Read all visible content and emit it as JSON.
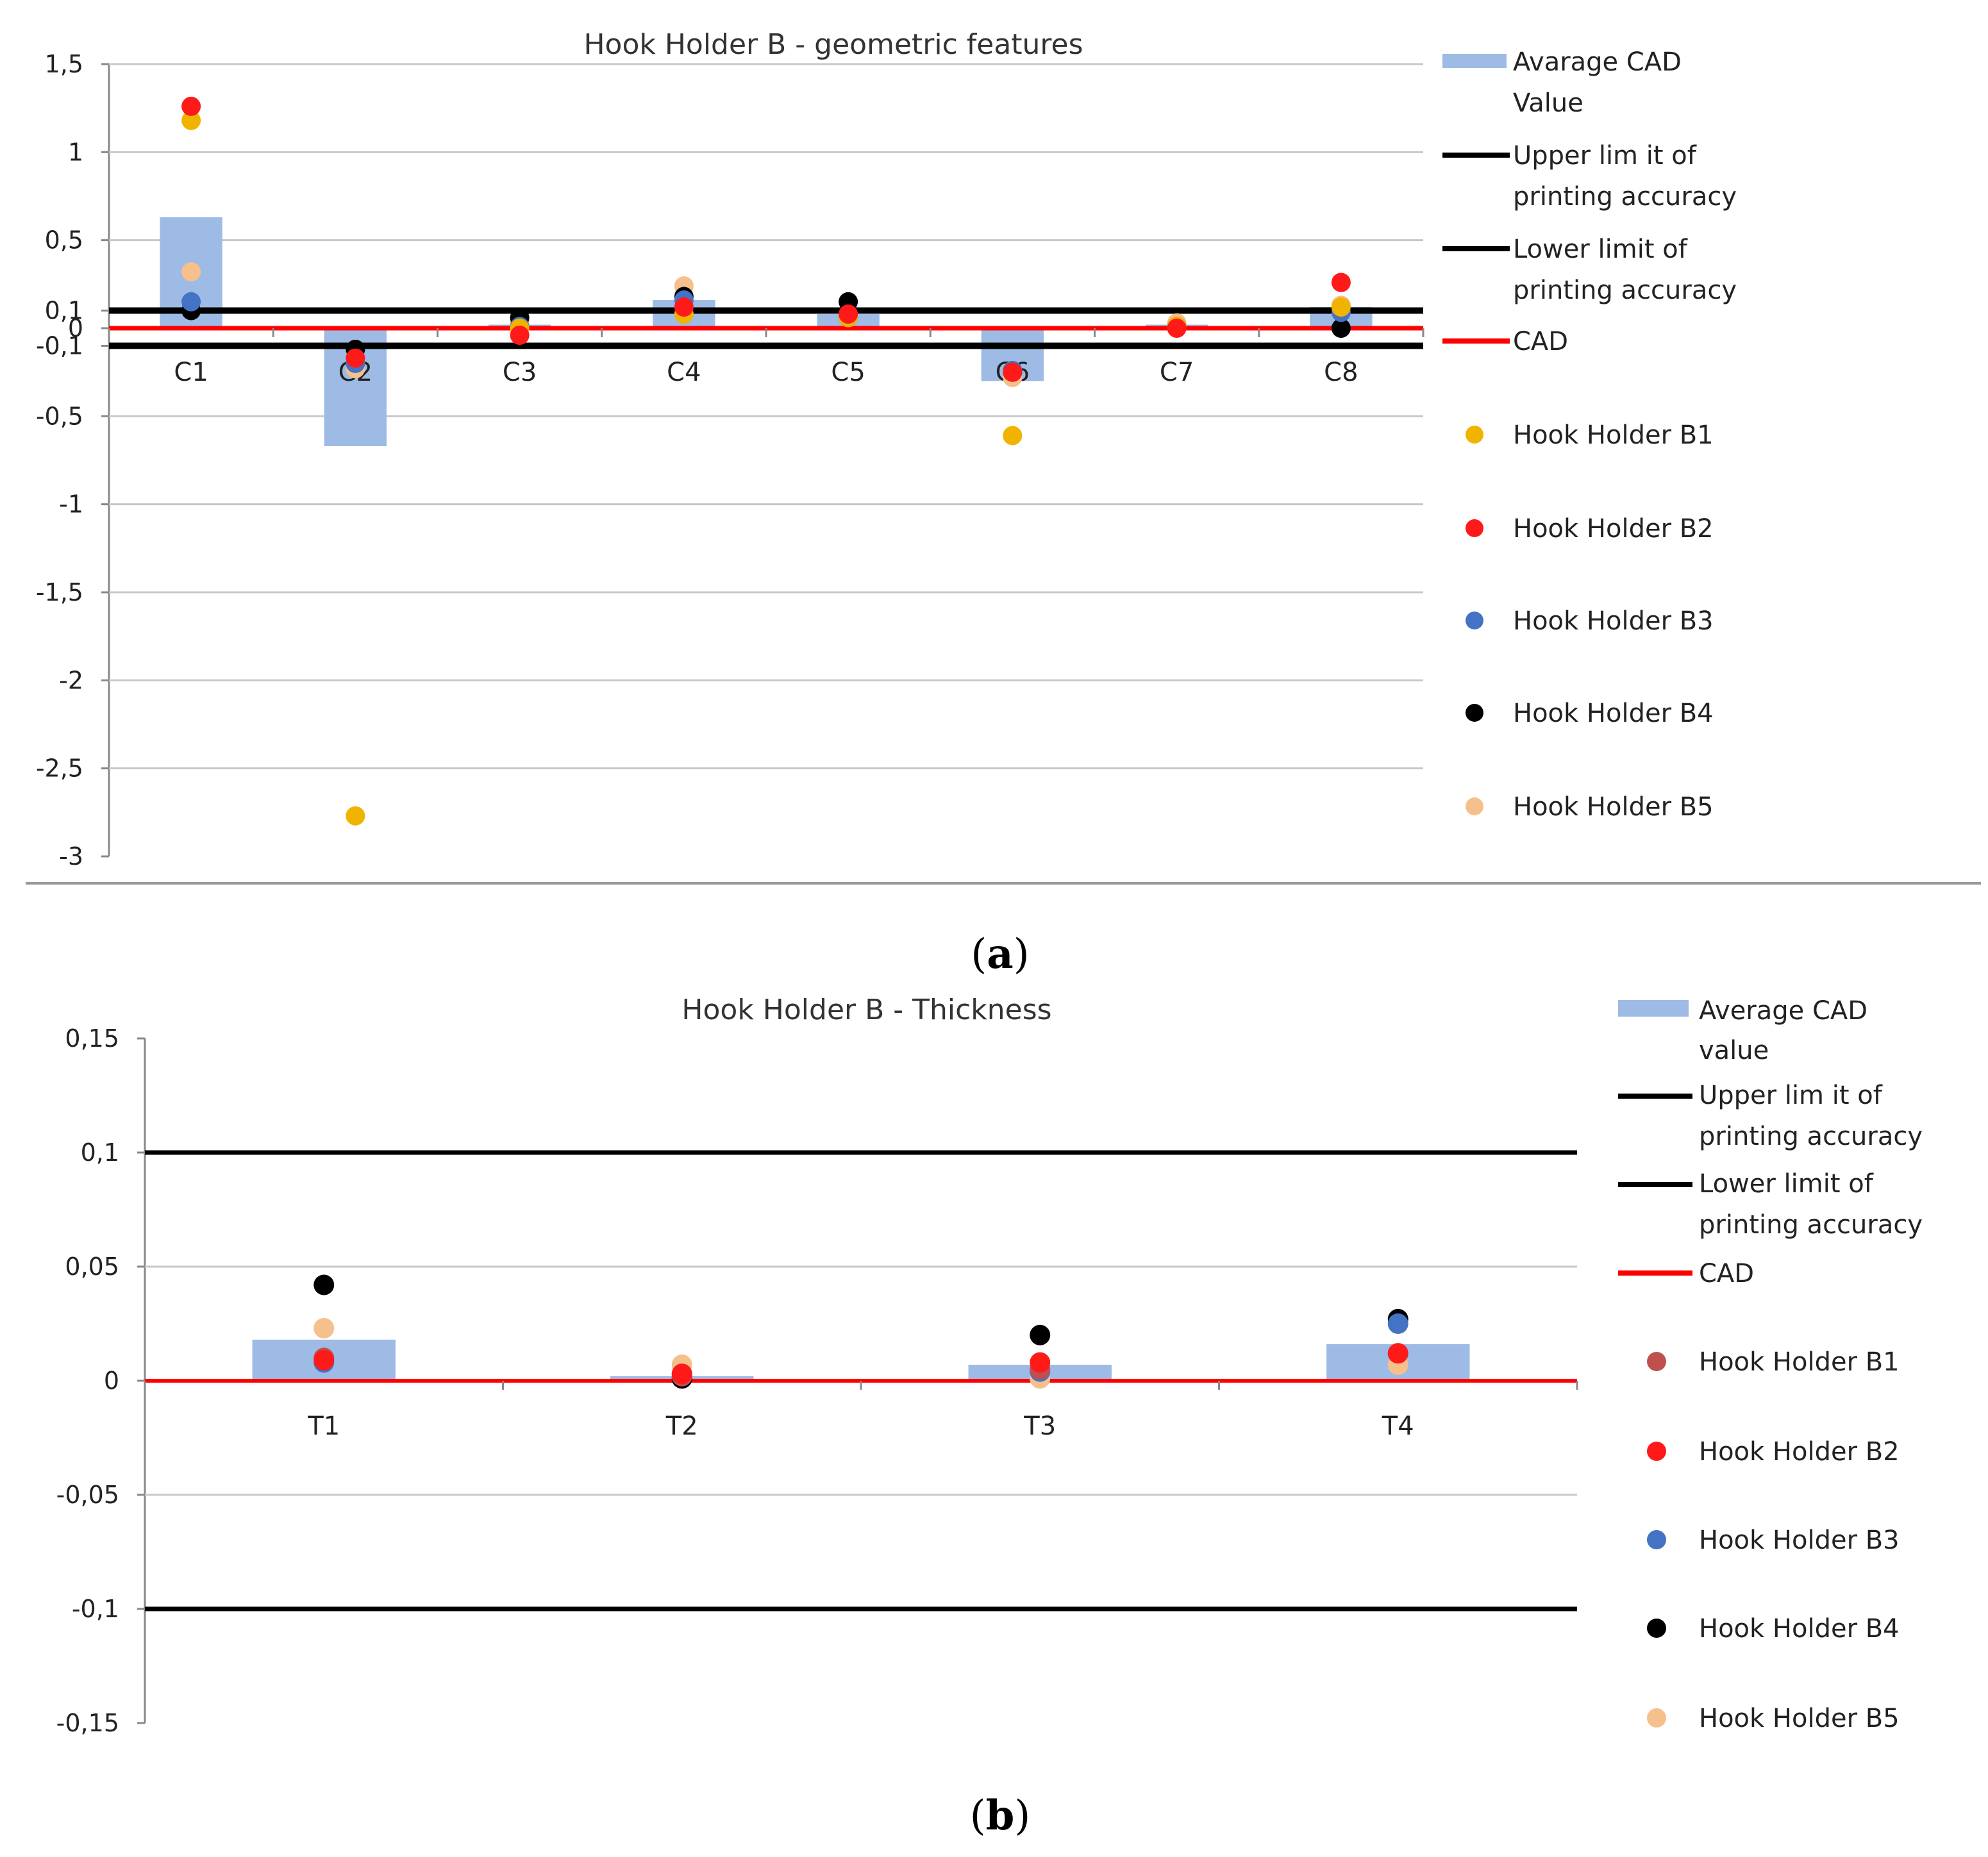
{
  "chart_data": [
    {
      "type": "bar+scatter",
      "title": "Hook Holder B - geometric features",
      "caption_letter": "a",
      "categories": [
        "C1",
        "C2",
        "C3",
        "C4",
        "C5",
        "C6",
        "C7",
        "C8"
      ],
      "y_ticks": [
        "1,5",
        "1",
        "0,5",
        "0,1",
        "0",
        "-0,1",
        "-0,5",
        "-1",
        "-1,5",
        "-2",
        "-2,5",
        "-3"
      ],
      "y_tick_values": [
        1.5,
        1,
        0.5,
        0.1,
        0,
        -0.1,
        -0.5,
        -1,
        -1.5,
        -2,
        -2.5,
        -3
      ],
      "ylim": [
        -3,
        1.5
      ],
      "average_bar": {
        "name": "Avarage CAD Value",
        "values": [
          0.63,
          -0.67,
          0.02,
          0.16,
          0.08,
          -0.3,
          0.02,
          0.12
        ]
      },
      "upper_limit": {
        "name": "Upper limit of printing accuracy",
        "value": 0.1
      },
      "lower_limit": {
        "name": "Lower limit of printing accuracy",
        "value": -0.1
      },
      "cad_line": {
        "name": "CAD",
        "value": 0
      },
      "series": [
        {
          "name": "Hook Holder B1",
          "color": "#f0b400",
          "values": [
            1.18,
            -2.77,
            0.0,
            0.08,
            0.06,
            -0.61,
            0.01,
            0.12
          ]
        },
        {
          "name": "Hook Holder B2",
          "color": "#ff1a1a",
          "values": [
            1.26,
            -0.17,
            -0.04,
            0.12,
            0.08,
            -0.25,
            0.0,
            0.26
          ]
        },
        {
          "name": "Hook Holder B3",
          "color": "#4472c4",
          "values": [
            0.15,
            -0.2,
            0.01,
            0.16,
            0.06,
            -0.24,
            0.01,
            0.09
          ]
        },
        {
          "name": "Hook Holder B4",
          "color": "#000000",
          "values": [
            0.1,
            -0.12,
            0.06,
            0.18,
            0.15,
            -0.25,
            0.01,
            0.0
          ]
        },
        {
          "name": "Hook Holder B5",
          "color": "#f5c08c",
          "values": [
            0.32,
            -0.23,
            0.04,
            0.24,
            0.07,
            -0.28,
            0.03,
            0.13
          ]
        }
      ]
    },
    {
      "type": "bar+scatter",
      "title": "Hook Holder B - Thickness",
      "caption_letter": "b",
      "categories": [
        "T1",
        "T2",
        "T3",
        "T4"
      ],
      "y_ticks": [
        "0,15",
        "0,1",
        "0,05",
        "0",
        "-0,05",
        "-0,1",
        "-0,15"
      ],
      "y_tick_values": [
        0.15,
        0.1,
        0.05,
        0,
        -0.05,
        -0.1,
        -0.15
      ],
      "ylim": [
        -0.15,
        0.15
      ],
      "average_bar": {
        "name": "Average CAD value",
        "values": [
          0.018,
          0.002,
          0.007,
          0.016
        ]
      },
      "upper_limit": {
        "name": "Upper limit of printing accuracy",
        "value": 0.1
      },
      "lower_limit": {
        "name": "Lower limit of printing accuracy",
        "value": -0.1
      },
      "cad_line": {
        "name": "CAD",
        "value": 0
      },
      "series": [
        {
          "name": "Hook Holder B1",
          "color": "#c0504d",
          "values": [
            0.01,
            0.002,
            0.005,
            0.012
          ]
        },
        {
          "name": "Hook Holder B2",
          "color": "#ff1a1a",
          "values": [
            0.009,
            0.003,
            0.008,
            0.012
          ]
        },
        {
          "name": "Hook Holder B3",
          "color": "#4472c4",
          "values": [
            0.008,
            0.003,
            0.004,
            0.025
          ]
        },
        {
          "name": "Hook Holder B4",
          "color": "#000000",
          "values": [
            0.042,
            0.001,
            0.02,
            0.027
          ]
        },
        {
          "name": "Hook Holder B5",
          "color": "#f5c08c",
          "values": [
            0.023,
            0.007,
            0.001,
            0.007
          ]
        }
      ]
    }
  ],
  "colors": {
    "bar": "#9dbbe5",
    "grid": "#c8c8c8",
    "axis": "#888888",
    "limit": "#000000",
    "cad": "#ff0000"
  }
}
